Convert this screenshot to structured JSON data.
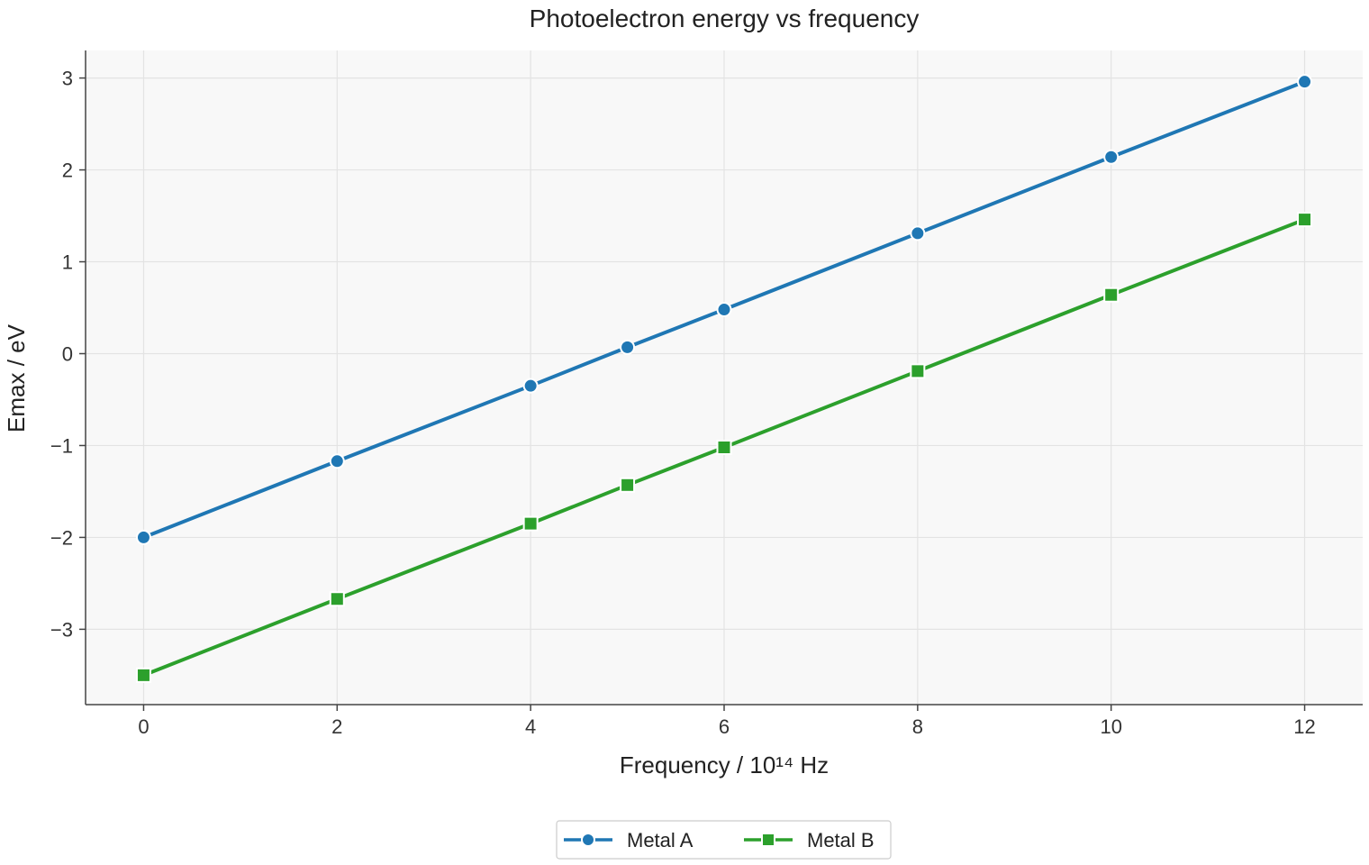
{
  "chart_data": {
    "type": "line",
    "title": "Photoelectron energy vs frequency",
    "xlabel": "Frequency / 10¹⁴ Hz",
    "ylabel": "Emax / eV",
    "xlim": [
      -0.6,
      12.6
    ],
    "ylim": [
      -3.82,
      3.3
    ],
    "x_ticks": [
      0,
      2,
      4,
      6,
      8,
      10,
      12
    ],
    "x_tick_labels": [
      "0",
      "2",
      "4",
      "6",
      "8",
      "10",
      "12"
    ],
    "y_ticks": [
      -3,
      -2,
      -1,
      0,
      1,
      2,
      3
    ],
    "y_tick_labels": [
      "−3",
      "−2",
      "−1",
      "0",
      "1",
      "2",
      "3"
    ],
    "grid": true,
    "legend_position": "bottom-center",
    "series": [
      {
        "name": "Metal A",
        "color": "#1f77b4",
        "marker": "circle",
        "x": [
          0,
          2,
          4,
          5,
          6,
          8,
          10,
          12
        ],
        "y": [
          -2.0,
          -1.17,
          -0.35,
          0.07,
          0.48,
          1.31,
          2.14,
          2.96
        ]
      },
      {
        "name": "Metal B",
        "color": "#2ca02c",
        "marker": "square",
        "x": [
          0,
          2,
          4,
          5,
          6,
          8,
          10,
          12
        ],
        "y": [
          -3.5,
          -2.67,
          -1.85,
          -1.43,
          -1.02,
          -0.19,
          0.64,
          1.46
        ]
      }
    ]
  }
}
